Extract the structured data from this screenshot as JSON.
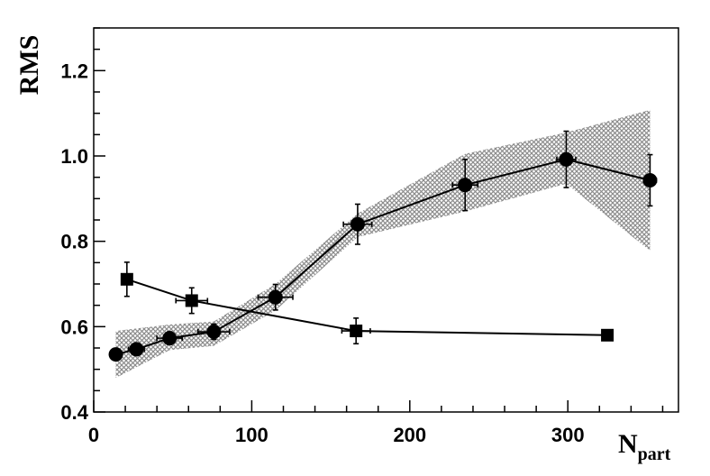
{
  "chart_data": {
    "type": "scatter",
    "title": "",
    "xlabel": "N",
    "xlabel_subscript": "part",
    "ylabel": "RMS",
    "xlim": [
      0,
      370
    ],
    "ylim": [
      0.4,
      1.3
    ],
    "x_ticks": [
      0,
      100,
      200,
      300
    ],
    "x_tick_labels": [
      "0",
      "100",
      "200",
      "300"
    ],
    "y_ticks": [
      0.4,
      0.6,
      0.8,
      1.0,
      1.2
    ],
    "y_tick_labels": [
      "0.4",
      "0.6",
      "0.8",
      "1.0",
      "1.2"
    ],
    "grid": false,
    "legend": "none",
    "series": [
      {
        "marker": "circle",
        "color": "#000000",
        "points": [
          {
            "x": 14,
            "y": 0.535,
            "xerr": 3,
            "yerr": 0.012
          },
          {
            "x": 27,
            "y": 0.547,
            "xerr": 5,
            "yerr": 0.012
          },
          {
            "x": 48,
            "y": 0.573,
            "xerr": 8,
            "yerr": 0.015
          },
          {
            "x": 76,
            "y": 0.588,
            "xerr": 10,
            "yerr": 0.018
          },
          {
            "x": 115,
            "y": 0.669,
            "xerr": 11,
            "yerr": 0.03
          },
          {
            "x": 167,
            "y": 0.84,
            "xerr": 9,
            "yerr": 0.047
          },
          {
            "x": 235,
            "y": 0.932,
            "xerr": 8,
            "yerr": 0.06
          },
          {
            "x": 299,
            "y": 0.992,
            "xerr": 6,
            "yerr": 0.066
          },
          {
            "x": 352,
            "y": 0.943,
            "xerr": 4,
            "yerr": 0.06
          }
        ]
      },
      {
        "marker": "square",
        "color": "#000000",
        "points": [
          {
            "x": 21,
            "y": 0.711,
            "xerr": 3,
            "yerr": 0.04
          },
          {
            "x": 62,
            "y": 0.661,
            "xerr": 10,
            "yerr": 0.03
          },
          {
            "x": 166,
            "y": 0.59,
            "xerr": 9,
            "yerr": 0.03
          },
          {
            "x": 325,
            "y": 0.58,
            "xerr": 0,
            "yerr": 0
          }
        ]
      }
    ],
    "band": {
      "color": "#8c8c8c",
      "upper": [
        [
          14,
          0.59
        ],
        [
          48,
          0.605
        ],
        [
          76,
          0.612
        ],
        [
          115,
          0.7
        ],
        [
          167,
          0.865
        ],
        [
          235,
          1.005
        ],
        [
          299,
          1.055
        ],
        [
          352,
          1.108
        ]
      ],
      "lower": [
        [
          14,
          0.48
        ],
        [
          48,
          0.545
        ],
        [
          76,
          0.555
        ],
        [
          115,
          0.638
        ],
        [
          167,
          0.81
        ],
        [
          235,
          0.87
        ],
        [
          299,
          0.935
        ],
        [
          352,
          0.778
        ]
      ]
    }
  }
}
